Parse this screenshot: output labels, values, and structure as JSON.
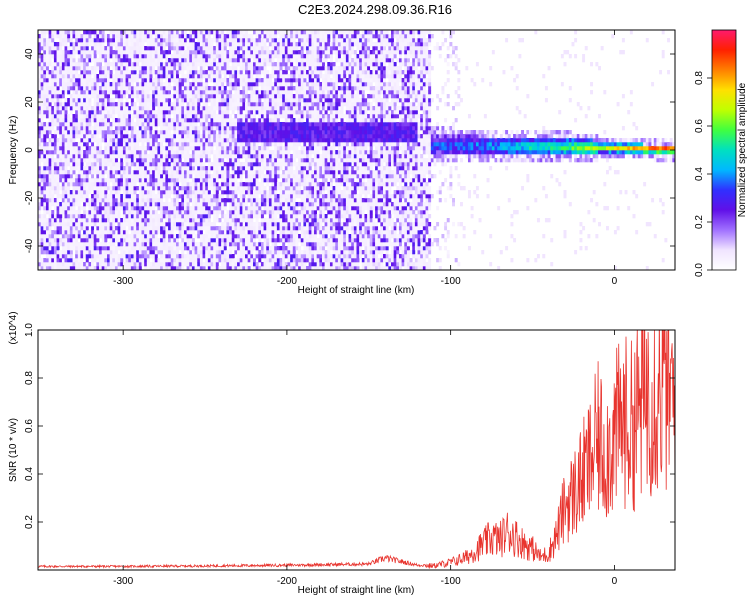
{
  "figure": {
    "title": "C2E3.2024.298.09.36.R16"
  },
  "chart_data": [
    {
      "type": "heatmap",
      "title": "C2E3.2024.298.09.36.R16",
      "xlabel": "Height of straight line (km)",
      "ylabel": "Frequency (Hz)",
      "xlim": [
        -352,
        37
      ],
      "ylim": [
        -50,
        50
      ],
      "xticks": [
        -300,
        -200,
        -100,
        0
      ],
      "xtick_labels": [
        "-300",
        "-200",
        "-100",
        "0"
      ],
      "yticks": [
        -40,
        -20,
        0,
        20,
        40
      ],
      "ytick_labels": [
        "-40",
        "-20",
        "0",
        "20",
        "40"
      ],
      "colorbar": {
        "label": "Normalized spectral amplitude",
        "range": [
          0,
          1
        ],
        "ticks": [
          0.0,
          0.2,
          0.4,
          0.6,
          0.8
        ],
        "tick_labels": [
          "0.0",
          "0.2",
          "0.4",
          "0.6",
          "0.8"
        ],
        "colors": [
          "#ffffff",
          "#f0e4ff",
          "#a070ff",
          "#6010e8",
          "#3030ff",
          "#00b8ff",
          "#00e0c0",
          "#40ff40",
          "#c0ff00",
          "#ffe000",
          "#ff8000",
          "#ff2000",
          "#ff1a6e"
        ]
      },
      "features": [
        {
          "name": "broadband noise",
          "x": [
            -352,
            -112
          ],
          "y": [
            -50,
            50
          ],
          "amplitude": 0.15
        },
        {
          "name": "weak echo",
          "x": [
            -230,
            -120
          ],
          "y_center": 8,
          "amplitude": 0.2
        },
        {
          "name": "echo trace",
          "x": [
            -112,
            37
          ],
          "y_center_start": 2,
          "y_center_end": 0.5,
          "amplitude_start": 0.35,
          "amplitude_end": 0.95
        }
      ],
      "grid": false
    },
    {
      "type": "line",
      "xlabel": "Height of straight line (km)",
      "ylabel": "SNR (10 * v/v)",
      "y_multiplier": "(x10^4)",
      "xlim": [
        -352,
        37
      ],
      "ylim": [
        0,
        1.0
      ],
      "xticks": [
        -300,
        -200,
        -100,
        0
      ],
      "xtick_labels": [
        "-300",
        "-200",
        "-100",
        "0"
      ],
      "yticks": [
        0.2,
        0.4,
        0.6,
        0.8,
        1.0
      ],
      "ytick_labels": [
        "0.2",
        "0.4",
        "0.6",
        "0.8",
        "1.0"
      ],
      "color": "#e8342e",
      "series": [
        {
          "x": [
            -350,
            -300,
            -250,
            -200,
            -150,
            -140,
            -120,
            -110,
            -100,
            -90,
            -80,
            -75,
            -70,
            -65,
            -60,
            -55,
            -50,
            -45,
            -40,
            -35,
            -30,
            -25,
            -20,
            -15,
            -10,
            -5,
            0,
            5,
            10,
            15,
            20,
            25,
            30,
            35
          ],
          "y": [
            0.015,
            0.015,
            0.017,
            0.02,
            0.025,
            0.05,
            0.02,
            0.02,
            0.035,
            0.06,
            0.12,
            0.15,
            0.14,
            0.18,
            0.15,
            0.12,
            0.1,
            0.06,
            0.08,
            0.17,
            0.3,
            0.35,
            0.42,
            0.5,
            0.6,
            0.55,
            0.62,
            0.7,
            0.66,
            0.74,
            0.85,
            0.82,
            0.88,
            0.78
          ]
        }
      ],
      "grid": false
    }
  ]
}
